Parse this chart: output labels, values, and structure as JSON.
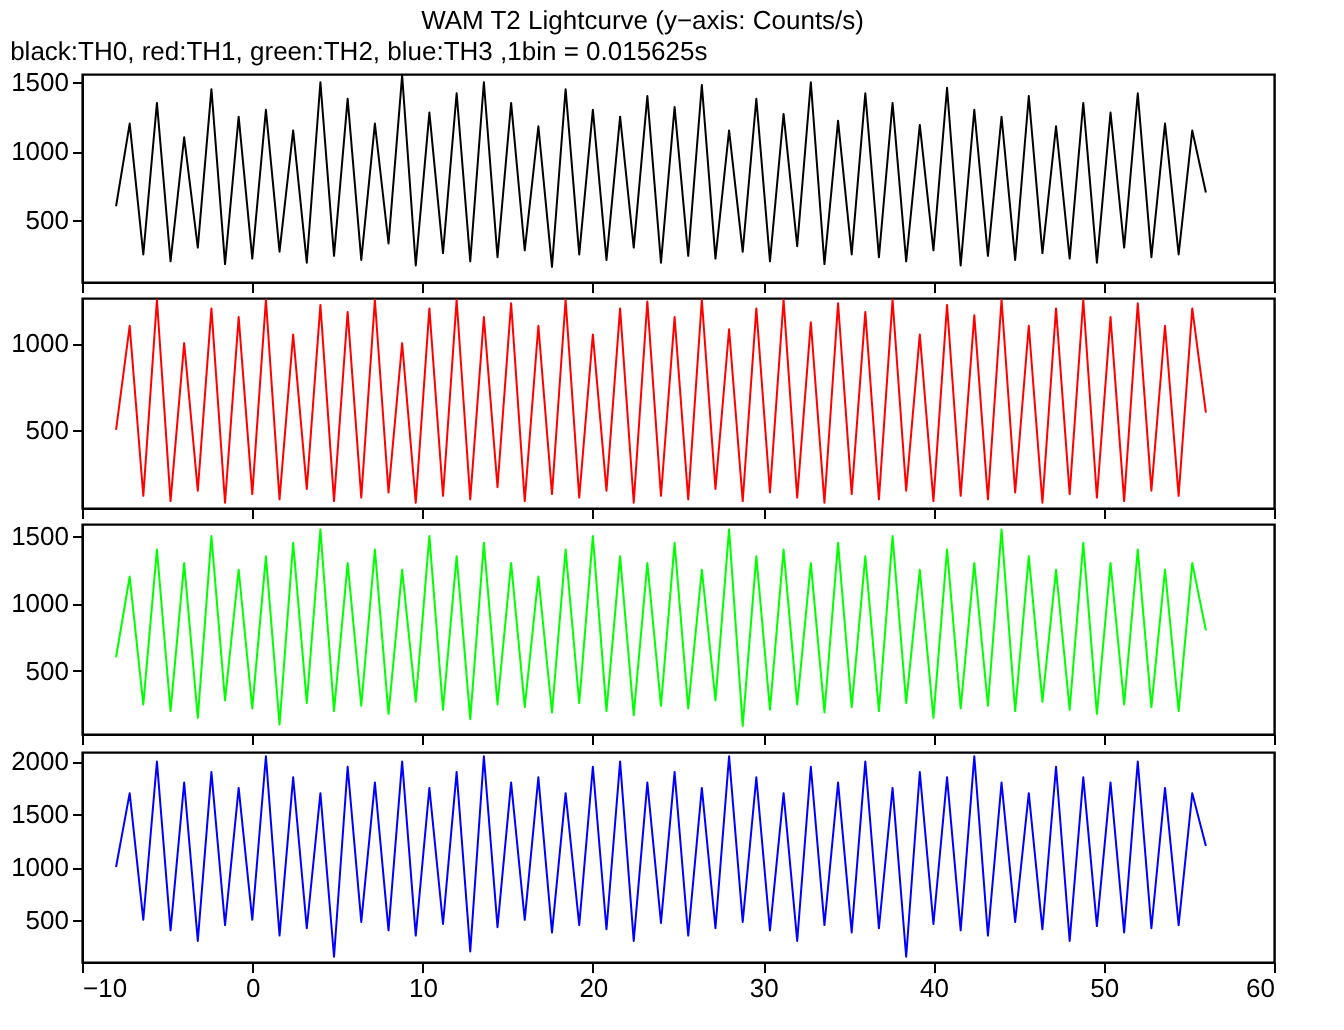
{
  "chart_data": [
    {
      "type": "line",
      "title": "WAM T2 Lightcurve (y−axis: Counts/s)",
      "subtitle": "black:TH0, red:TH1, green:TH2, blue:TH3 ,1bin = 0.015625s",
      "xlim": [
        -10,
        60
      ],
      "xticks": [
        -10,
        0,
        10,
        20,
        30,
        40,
        50,
        60
      ],
      "ylim": [
        50,
        1560
      ],
      "yticks": [
        500,
        1000,
        1500
      ],
      "tick_labels": "y",
      "x": [
        -8,
        -7.2,
        -6.4,
        -5.6,
        -4.8,
        -4,
        -3.2,
        -2.4,
        -1.6,
        -0.8,
        0,
        0.8,
        1.6,
        2.4,
        3.2,
        4,
        4.8,
        5.6,
        6.4,
        7.2,
        8,
        8.8,
        9.6,
        10.4,
        11.2,
        12,
        12.8,
        13.6,
        14.4,
        15.2,
        16,
        16.8,
        17.6,
        18.4,
        19.2,
        20,
        20.8,
        21.6,
        22.4,
        23.2,
        24,
        24.8,
        25.6,
        26.4,
        27.2,
        28,
        28.8,
        29.6,
        30.4,
        31.2,
        32,
        32.8,
        33.6,
        34.4,
        35.2,
        36,
        36.8,
        37.6,
        38.4,
        39.2,
        40,
        40.8,
        41.6,
        42.4,
        43.2,
        44,
        44.8,
        45.6,
        46.4,
        47.2,
        48,
        48.8,
        49.6,
        50.4,
        51.2,
        52,
        52.8,
        53.6,
        54.4,
        55.2,
        56
      ],
      "series": [
        {
          "color": "#000000",
          "values": [
            600,
            1200,
            250,
            1350,
            200,
            1100,
            300,
            1450,
            180,
            1250,
            220,
            1300,
            270,
            1150,
            190,
            1500,
            240,
            1380,
            210,
            1200,
            330,
            1550,
            170,
            1280,
            260,
            1420,
            200,
            1500,
            230,
            1350,
            280,
            1180,
            160,
            1450,
            250,
            1300,
            210,
            1250,
            300,
            1400,
            190,
            1320,
            240,
            1480,
            220,
            1150,
            270,
            1380,
            200,
            1270,
            310,
            1500,
            180,
            1220,
            250,
            1420,
            230,
            1350,
            200,
            1190,
            280,
            1460,
            170,
            1300,
            240,
            1250,
            210,
            1400,
            260,
            1180,
            220,
            1350,
            190,
            1280,
            300,
            1420,
            230,
            1200,
            250,
            1150,
            700
          ]
        }
      ]
    },
    {
      "type": "line",
      "xlim": [
        -10,
        60
      ],
      "xticks": [
        -10,
        0,
        10,
        20,
        30,
        40,
        50,
        60
      ],
      "ylim": [
        50,
        1260
      ],
      "yticks": [
        500,
        1000
      ],
      "tick_labels": "y",
      "x": [
        -8,
        -7.2,
        -6.4,
        -5.6,
        -4.8,
        -4,
        -3.2,
        -2.4,
        -1.6,
        -0.8,
        0,
        0.8,
        1.6,
        2.4,
        3.2,
        4,
        4.8,
        5.6,
        6.4,
        7.2,
        8,
        8.8,
        9.6,
        10.4,
        11.2,
        12,
        12.8,
        13.6,
        14.4,
        15.2,
        16,
        16.8,
        17.6,
        18.4,
        19.2,
        20,
        20.8,
        21.6,
        22.4,
        23.2,
        24,
        24.8,
        25.6,
        26.4,
        27.2,
        28,
        28.8,
        29.6,
        30.4,
        31.2,
        32,
        32.8,
        33.6,
        34.4,
        35.2,
        36,
        36.8,
        37.6,
        38.4,
        39.2,
        40,
        40.8,
        41.6,
        42.4,
        43.2,
        44,
        44.8,
        45.6,
        46.4,
        47.2,
        48,
        48.8,
        49.6,
        50.4,
        51.2,
        52,
        52.8,
        53.6,
        54.4,
        55.2,
        56
      ],
      "series": [
        {
          "color": "#ff0000",
          "values": [
            500,
            1100,
            120,
            1250,
            90,
            1000,
            150,
            1200,
            80,
            1150,
            130,
            1250,
            100,
            1050,
            160,
            1220,
            90,
            1180,
            110,
            1250,
            140,
            1000,
            80,
            1200,
            120,
            1250,
            100,
            1150,
            170,
            1230,
            90,
            1100,
            130,
            1250,
            110,
            1050,
            150,
            1200,
            80,
            1240,
            120,
            1150,
            100,
            1250,
            160,
            1080,
            90,
            1200,
            140,
            1250,
            110,
            1120,
            80,
            1230,
            130,
            1180,
            100,
            1250,
            150,
            1050,
            90,
            1220,
            120,
            1160,
            100,
            1250,
            140,
            1100,
            80,
            1200,
            130,
            1250,
            110,
            1150,
            90,
            1230,
            150,
            1100,
            120,
            1200,
            600
          ]
        }
      ]
    },
    {
      "type": "line",
      "xlim": [
        -10,
        60
      ],
      "xticks": [
        -10,
        0,
        10,
        20,
        30,
        40,
        50,
        60
      ],
      "ylim": [
        30,
        1590
      ],
      "yticks": [
        500,
        1000,
        1500
      ],
      "tick_labels": "y",
      "x": [
        -8,
        -7.2,
        -6.4,
        -5.6,
        -4.8,
        -4,
        -3.2,
        -2.4,
        -1.6,
        -0.8,
        0,
        0.8,
        1.6,
        2.4,
        3.2,
        4,
        4.8,
        5.6,
        6.4,
        7.2,
        8,
        8.8,
        9.6,
        10.4,
        11.2,
        12,
        12.8,
        13.6,
        14.4,
        15.2,
        16,
        16.8,
        17.6,
        18.4,
        19.2,
        20,
        20.8,
        21.6,
        22.4,
        23.2,
        24,
        24.8,
        25.6,
        26.4,
        27.2,
        28,
        28.8,
        29.6,
        30.4,
        31.2,
        32,
        32.8,
        33.6,
        34.4,
        35.2,
        36,
        36.8,
        37.6,
        38.4,
        39.2,
        40,
        40.8,
        41.6,
        42.4,
        43.2,
        44,
        44.8,
        45.6,
        46.4,
        47.2,
        48,
        48.8,
        49.6,
        50.4,
        51.2,
        52,
        52.8,
        53.6,
        54.4,
        55.2,
        56
      ],
      "series": [
        {
          "color": "#00ff00",
          "values": [
            600,
            1200,
            250,
            1400,
            200,
            1300,
            150,
            1500,
            280,
            1250,
            220,
            1350,
            100,
            1450,
            260,
            1550,
            200,
            1300,
            240,
            1400,
            180,
            1250,
            270,
            1500,
            210,
            1350,
            140,
            1450,
            250,
            1300,
            230,
            1200,
            190,
            1400,
            260,
            1500,
            200,
            1350,
            170,
            1300,
            240,
            1450,
            220,
            1250,
            280,
            1550,
            90,
            1350,
            210,
            1400,
            250,
            1300,
            190,
            1450,
            230,
            1350,
            200,
            1500,
            260,
            1250,
            150,
            1400,
            220,
            1300,
            240,
            1550,
            200,
            1350,
            270,
            1250,
            210,
            1450,
            180,
            1300,
            250,
            1400,
            230,
            1250,
            200,
            1300,
            800
          ]
        }
      ]
    },
    {
      "type": "line",
      "xlim": [
        -10,
        60
      ],
      "xticks": [
        -10,
        0,
        10,
        20,
        30,
        40,
        50,
        60
      ],
      "ylim": [
        100,
        2090
      ],
      "yticks": [
        500,
        1000,
        1500,
        2000
      ],
      "x": [
        -8,
        -7.2,
        -6.4,
        -5.6,
        -4.8,
        -4,
        -3.2,
        -2.4,
        -1.6,
        -0.8,
        0,
        0.8,
        1.6,
        2.4,
        3.2,
        4,
        4.8,
        5.6,
        6.4,
        7.2,
        8,
        8.8,
        9.6,
        10.4,
        11.2,
        12,
        12.8,
        13.6,
        14.4,
        15.2,
        16,
        16.8,
        17.6,
        18.4,
        19.2,
        20,
        20.8,
        21.6,
        22.4,
        23.2,
        24,
        24.8,
        25.6,
        26.4,
        27.2,
        28,
        28.8,
        29.6,
        30.4,
        31.2,
        32,
        32.8,
        33.6,
        34.4,
        35.2,
        36,
        36.8,
        37.6,
        38.4,
        39.2,
        40,
        40.8,
        41.6,
        42.4,
        43.2,
        44,
        44.8,
        45.6,
        46.4,
        47.2,
        48,
        48.8,
        49.6,
        50.4,
        51.2,
        52,
        52.8,
        53.6,
        54.4,
        55.2,
        56
      ],
      "series": [
        {
          "color": "#0000ff",
          "values": [
            1000,
            1700,
            500,
            2000,
            400,
            1800,
            300,
            1900,
            450,
            1750,
            500,
            2050,
            350,
            1850,
            420,
            1700,
            150,
            1950,
            480,
            1800,
            400,
            2000,
            350,
            1750,
            460,
            1900,
            200,
            2050,
            430,
            1800,
            500,
            1850,
            380,
            1700,
            450,
            1950,
            410,
            2000,
            300,
            1800,
            470,
            1900,
            350,
            1750,
            420,
            2050,
            480,
            1850,
            400,
            1700,
            300,
            1950,
            450,
            1800,
            380,
            2000,
            420,
            1750,
            150,
            1900,
            460,
            1850,
            400,
            2050,
            350,
            1800,
            480,
            1700,
            410,
            1950,
            300,
            1850,
            440,
            1800,
            380,
            2000,
            420,
            1750,
            450,
            1700,
            1200
          ]
        }
      ]
    }
  ]
}
